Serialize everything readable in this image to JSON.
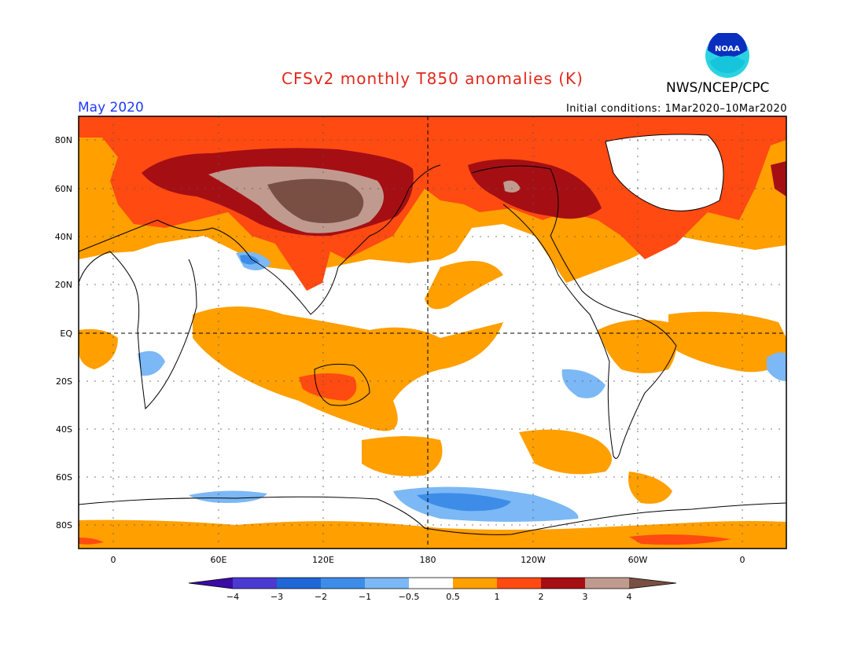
{
  "title": "CFSv2 monthly T850 anomalies (K)",
  "month": "May 2020",
  "initial_conditions": "Initial conditions: 1Mar2020–10Mar2020",
  "agency": "NWS/NCEP/CPC",
  "logo": {
    "text": "NOAA",
    "icon": "noaa-logo-icon"
  },
  "axes": {
    "lat_labels": [
      "80N",
      "60N",
      "40N",
      "20N",
      "EQ",
      "20S",
      "40S",
      "60S",
      "80S"
    ],
    "lon_labels": [
      "0",
      "60E",
      "120E",
      "180",
      "120W",
      "60W",
      "0"
    ]
  },
  "legend": {
    "levels": [
      "−4",
      "−3",
      "−2",
      "−1",
      "−0.5",
      "0.5",
      "1",
      "2",
      "3",
      "4"
    ],
    "colors": [
      "#3a0ca3",
      "#4b3ad1",
      "#1f66d6",
      "#3d8de8",
      "#7bb8f5",
      "#ffffff",
      "#ff9f00",
      "#ff4a12",
      "#a50f14",
      "#c19a8f",
      "#7a4f43"
    ]
  }
}
